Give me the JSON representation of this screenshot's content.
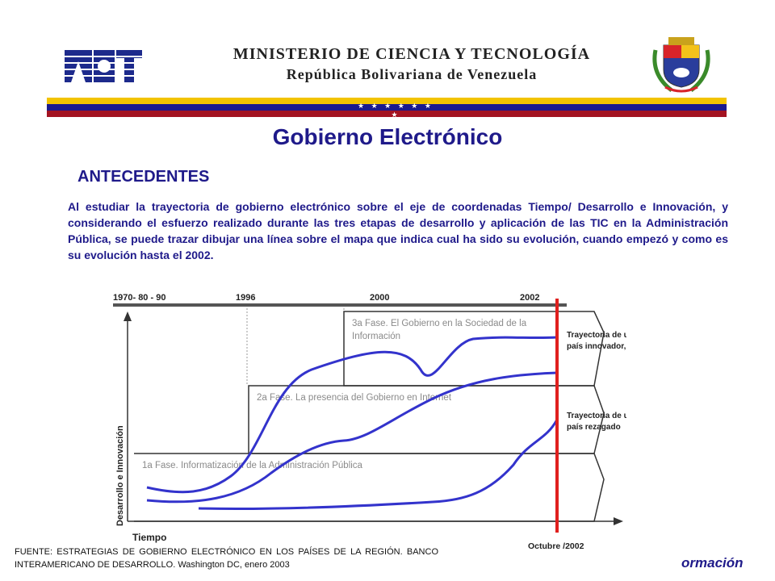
{
  "header": {
    "ministry_title": "MINISTERIO DE CIENCIA Y TECNOLOGÍA",
    "republic_name": "República Bolivariana de Venezuela",
    "flag_stars": "★ ★ ★ ★ ★ ★ ★",
    "colors": {
      "yellow": "#f2c300",
      "blue": "#1a1a8e",
      "red": "#a31322"
    }
  },
  "title": "Gobierno Electrónico",
  "section_heading": "ANTECEDENTES",
  "intro_paragraph": "Al estudiar la trayectoria de gobierno electrónico sobre el eje de coordenadas Tiempo/ Desarrollo e Innovación, y considerando el esfuerzo realizado durante las tres etapas de desarrollo y aplicación de las TIC en la Administración Pública, se puede trazar dibujar una línea sobre el mapa que indica cual ha sido su evolución, cuando empezó y como es su evolución hasta el 2002.",
  "diagram": {
    "periods": [
      "1970- 80 - 90",
      "1996",
      "2000",
      "2002"
    ],
    "phases": [
      "3a Fase. El Gobierno en la Sociedad de la Información",
      "2a Fase. La presencia del Gobierno en Internet",
      "1a Fase. Informatización de la Administración Pública"
    ],
    "phase3_line1": "3a Fase. El Gobierno en la Sociedad de la",
    "phase3_line2": "Información",
    "y_axis_label": "Desarrollo e Innovación",
    "x_axis_label": "Tiempo",
    "date_marker": "Octubre /2002",
    "innovator_line1": "Trayectoria de un",
    "innovator_line2": "país innovador, líder",
    "laggard_line1": "Trayectoria de un",
    "laggard_line2": "país rezagado",
    "colors": {
      "curves": "#3333cc",
      "marker": "#e0201e",
      "boxes": "#333333"
    }
  },
  "source_note": "FUENTE: ESTRATEGIAS DE GOBIERNO ELECTRÓNICO EN LOS PAÍSES DE LA REGIÓN. BANCO INTERAMERICANO DE DESARROLLO. Washington DC, enero 2003",
  "footer_fragment": "ormación"
}
